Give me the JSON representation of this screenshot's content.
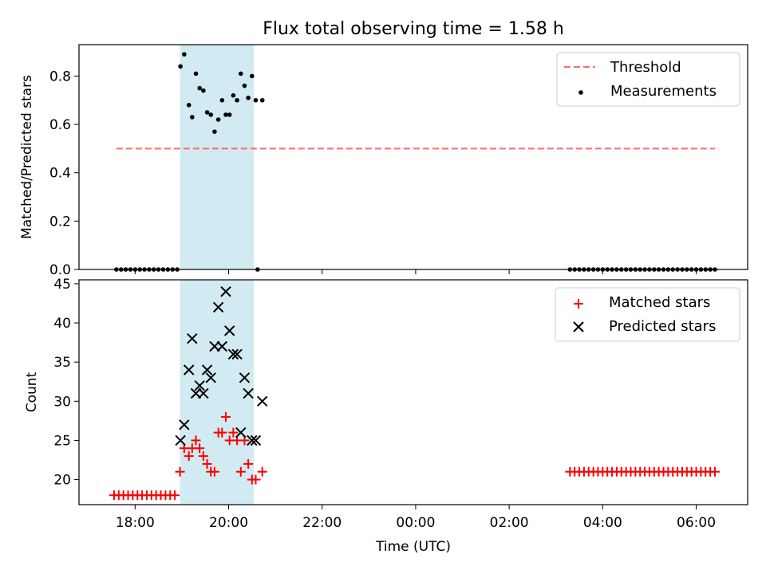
{
  "title": "Flux total observing time = 1.58 h",
  "chart_data": [
    {
      "panel": "top",
      "type": "scatter",
      "ylabel": "Matched/Predicted stars",
      "ylim": [
        0,
        0.93
      ],
      "yticks": [
        0.0,
        0.2,
        0.4,
        0.6,
        0.8
      ],
      "ytick_labels": [
        "0.0",
        "0.2",
        "0.4",
        "0.6",
        "0.8"
      ],
      "xlim": [
        16.8,
        31.1
      ],
      "highlight_span": {
        "x0": 18.96,
        "x1": 20.54,
        "color": "#add8e6"
      },
      "threshold": {
        "name": "Threshold",
        "value": 0.5,
        "x0": 17.6,
        "x1": 30.4,
        "color": "#ff6b6b",
        "style": "dashed"
      },
      "series": [
        {
          "name": "Measurements",
          "color": "#000000",
          "marker": "dot",
          "x": [
            17.6,
            17.7,
            17.8,
            17.9,
            18.0,
            18.1,
            18.2,
            18.3,
            18.4,
            18.5,
            18.6,
            18.7,
            18.8,
            18.9,
            18.97,
            19.05,
            19.15,
            19.22,
            19.3,
            19.38,
            19.46,
            19.54,
            19.62,
            19.7,
            19.78,
            19.86,
            19.94,
            20.02,
            20.1,
            20.18,
            20.26,
            20.34,
            20.42,
            20.5,
            20.58,
            20.72,
            20.62,
            27.3,
            27.4,
            27.5,
            27.6,
            27.7,
            27.8,
            27.9,
            28.0,
            28.1,
            28.2,
            28.3,
            28.4,
            28.5,
            28.6,
            28.7,
            28.8,
            28.9,
            29.0,
            29.1,
            29.2,
            29.3,
            29.4,
            29.5,
            29.6,
            29.7,
            29.8,
            29.9,
            30.0,
            30.1,
            30.2,
            30.3,
            30.4
          ],
          "y": [
            0,
            0,
            0,
            0,
            0,
            0,
            0,
            0,
            0,
            0,
            0,
            0,
            0,
            0,
            0.84,
            0.89,
            0.68,
            0.63,
            0.81,
            0.75,
            0.74,
            0.65,
            0.64,
            0.57,
            0.62,
            0.7,
            0.64,
            0.64,
            0.72,
            0.7,
            0.81,
            0.76,
            0.71,
            0.8,
            0.7,
            0.7,
            0,
            0,
            0,
            0,
            0,
            0,
            0,
            0,
            0,
            0,
            0,
            0,
            0,
            0,
            0,
            0,
            0,
            0,
            0,
            0,
            0,
            0,
            0,
            0,
            0,
            0,
            0,
            0,
            0,
            0,
            0,
            0,
            0
          ]
        }
      ],
      "legend": {
        "position": "top-right",
        "entries": [
          "Threshold",
          "Measurements"
        ]
      }
    },
    {
      "panel": "bottom",
      "type": "scatter",
      "ylabel": "Count",
      "xlabel": "Time (UTC)",
      "ylim": [
        16.8,
        45.5
      ],
      "yticks": [
        20,
        25,
        30,
        35,
        40,
        45
      ],
      "ytick_labels": [
        "20",
        "25",
        "30",
        "35",
        "40",
        "45"
      ],
      "xlim": [
        16.8,
        31.1
      ],
      "xticks": [
        18,
        20,
        22,
        24,
        26,
        28,
        30
      ],
      "xtick_labels": [
        "18:00",
        "20:00",
        "22:00",
        "00:00",
        "02:00",
        "04:00",
        "06:00"
      ],
      "highlight_span": {
        "x0": 18.96,
        "x1": 20.54,
        "color": "#add8e6"
      },
      "series": [
        {
          "name": "Matched stars",
          "color": "#ff0000",
          "marker": "plus",
          "x": [
            17.55,
            17.65,
            17.75,
            17.85,
            17.95,
            18.05,
            18.15,
            18.25,
            18.35,
            18.45,
            18.55,
            18.65,
            18.75,
            18.85,
            18.96,
            19.05,
            19.15,
            19.22,
            19.3,
            19.38,
            19.46,
            19.54,
            19.62,
            19.7,
            19.78,
            19.86,
            19.94,
            20.02,
            20.1,
            20.18,
            20.26,
            20.34,
            20.42,
            20.5,
            20.58,
            20.72,
            27.3,
            27.4,
            27.5,
            27.6,
            27.7,
            27.8,
            27.9,
            28.0,
            28.1,
            28.2,
            28.3,
            28.4,
            28.5,
            28.6,
            28.7,
            28.8,
            28.9,
            29.0,
            29.1,
            29.2,
            29.3,
            29.4,
            29.5,
            29.6,
            29.7,
            29.8,
            29.9,
            30.0,
            30.1,
            30.2,
            30.3,
            30.4
          ],
          "y": [
            18,
            18,
            18,
            18,
            18,
            18,
            18,
            18,
            18,
            18,
            18,
            18,
            18,
            18,
            21,
            24,
            23,
            24,
            25,
            24,
            23,
            22,
            21,
            21,
            26,
            26,
            28,
            25,
            26,
            25,
            21,
            25,
            22,
            20,
            20,
            21,
            21,
            21,
            21,
            21,
            21,
            21,
            21,
            21,
            21,
            21,
            21,
            21,
            21,
            21,
            21,
            21,
            21,
            21,
            21,
            21,
            21,
            21,
            21,
            21,
            21,
            21,
            21,
            21,
            21,
            21,
            21,
            21
          ]
        },
        {
          "name": "Predicted stars",
          "color": "#000000",
          "marker": "x",
          "x": [
            18.97,
            19.05,
            19.15,
            19.22,
            19.3,
            19.38,
            19.46,
            19.54,
            19.62,
            19.7,
            19.78,
            19.86,
            19.94,
            20.02,
            20.1,
            20.18,
            20.26,
            20.34,
            20.42,
            20.5,
            20.58,
            20.72
          ],
          "y": [
            25,
            27,
            34,
            38,
            31,
            32,
            31,
            34,
            33,
            37,
            42,
            37,
            44,
            39,
            36,
            36,
            26,
            33,
            31,
            25,
            25,
            30
          ]
        }
      ],
      "legend": {
        "position": "top-right",
        "entries": [
          "Matched stars",
          "Predicted stars"
        ]
      }
    }
  ]
}
